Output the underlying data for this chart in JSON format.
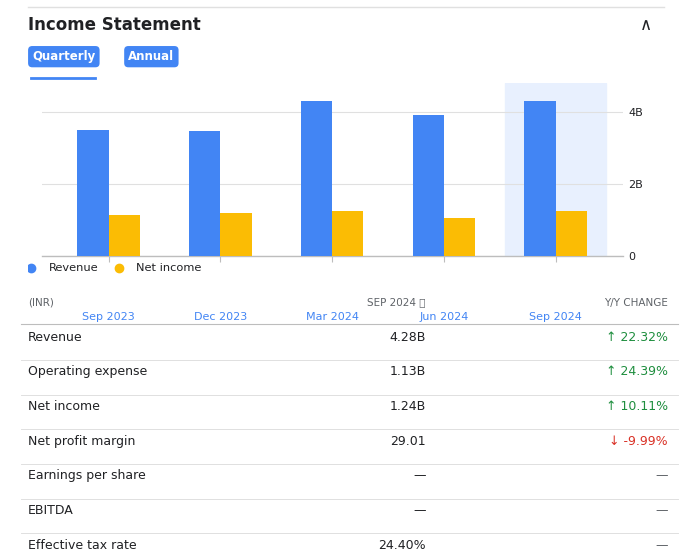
{
  "title": "Income Statement",
  "tabs": [
    "Quarterly",
    "Annual"
  ],
  "periods": [
    "Sep 2023",
    "Dec 2023",
    "Mar 2024",
    "Jun 2024",
    "Sep 2024"
  ],
  "revenue_values": [
    3.5,
    3.45,
    4.3,
    3.9,
    4.28
  ],
  "net_income_values": [
    1.13,
    1.2,
    1.25,
    1.05,
    1.24
  ],
  "y_ticks": [
    0,
    2,
    4
  ],
  "y_tick_labels": [
    "0",
    "2B",
    "4B"
  ],
  "y_max": 4.8,
  "bar_colors": [
    "#4285f4",
    "#fbbc04"
  ],
  "legend_labels": [
    "Revenue",
    "Net income"
  ],
  "highlighted_bg": "#e8f0fe",
  "table_header_inr": "(INR)",
  "table_header_sep": "SEP 2024 ⓘ",
  "table_header_yy": "Y/Y CHANGE",
  "table_rows": [
    {
      "label": "Revenue",
      "value": "4.28B",
      "change": "↑ 22.32%",
      "change_color": "#1e8e3e",
      "separator": true
    },
    {
      "label": "Operating expense",
      "value": "1.13B",
      "change": "↑ 24.39%",
      "change_color": "#1e8e3e",
      "separator": true
    },
    {
      "label": "Net income",
      "value": "1.24B",
      "change": "↑ 10.11%",
      "change_color": "#1e8e3e",
      "separator": true
    },
    {
      "label": "Net profit margin",
      "value": "29.01",
      "change": "↓ -9.99%",
      "change_color": "#d93025",
      "separator": true
    },
    {
      "label": "Earnings per share",
      "value": "—",
      "change": "—",
      "change_color": "#5f6368",
      "separator": true
    },
    {
      "label": "EBITDA",
      "value": "—",
      "change": "—",
      "change_color": "#5f6368",
      "separator": true
    },
    {
      "label": "Effective tax rate",
      "value": "24.40%",
      "change": "—",
      "change_color": "#5f6368",
      "separator": false
    }
  ],
  "bg_color": "#ffffff",
  "border_color": "#e0e0e0",
  "text_dark": "#202124",
  "text_light": "#5f6368",
  "blue_label": "#4285f4",
  "line_color": "#e0e0e0",
  "header_line_color": "#bdbdbd"
}
